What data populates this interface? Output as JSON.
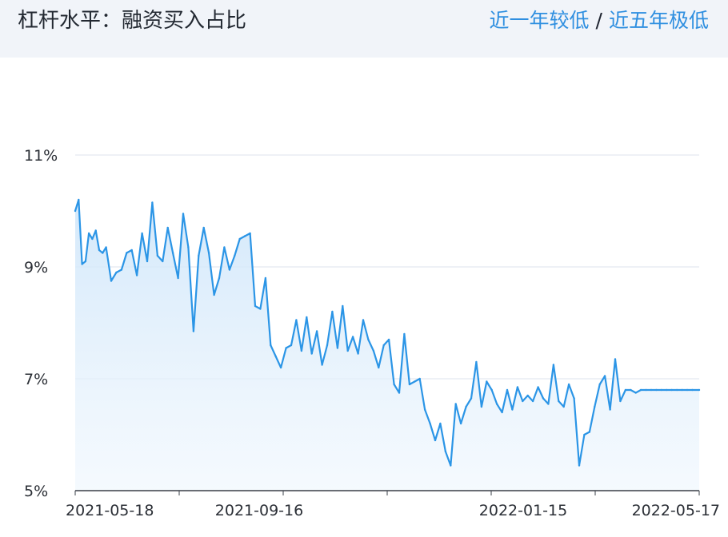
{
  "header": {
    "title": "杠杆水平：融资买入占比",
    "status_1y": "近一年较低",
    "separator": "/",
    "status_5y": "近五年极低"
  },
  "colors": {
    "line": "#2b95e6",
    "area_top": "#cfe6fa",
    "grid": "#dde3ec",
    "header_bg": "#f1f4f9",
    "accent": "#2f8fe0"
  },
  "chart_data": {
    "type": "area",
    "title": "",
    "xlabel": "",
    "ylabel": "",
    "ylim": [
      5,
      11
    ],
    "yticks": [
      5,
      7,
      9,
      11
    ],
    "ytick_labels": [
      "5%",
      "7%",
      "9%",
      "11%"
    ],
    "xtick_labels": [
      "2021-05-18",
      "2021-09-16",
      "2022-01-15",
      "2022-05-17"
    ],
    "grid": true,
    "legend": "none",
    "series": [
      {
        "x": [
          "2021-05-18",
          "2021-05-20",
          "2021-05-22",
          "2021-05-24",
          "2021-05-26",
          "2021-05-28",
          "2021-05-30",
          "2021-06-01",
          "2021-06-03",
          "2021-06-05",
          "2021-06-08",
          "2021-06-11",
          "2021-06-14",
          "2021-06-17",
          "2021-06-20",
          "2021-06-23",
          "2021-06-26",
          "2021-06-29",
          "2021-07-02",
          "2021-07-05",
          "2021-07-08",
          "2021-07-11",
          "2021-07-14",
          "2021-07-17",
          "2021-07-20",
          "2021-07-23",
          "2021-07-26",
          "2021-07-29",
          "2021-08-01",
          "2021-08-04",
          "2021-08-07",
          "2021-08-10",
          "2021-08-13",
          "2021-08-16",
          "2021-08-19",
          "2021-08-22",
          "2021-08-25",
          "2021-08-28",
          "2021-08-31",
          "2021-09-03",
          "2021-09-06",
          "2021-09-09",
          "2021-09-12",
          "2021-09-15",
          "2021-09-18",
          "2021-09-21",
          "2021-09-24",
          "2021-09-27",
          "2021-09-30",
          "2021-10-03",
          "2021-10-06",
          "2021-10-09",
          "2021-10-12",
          "2021-10-15",
          "2021-10-18",
          "2021-10-21",
          "2021-10-24",
          "2021-10-27",
          "2021-10-30",
          "2021-11-02",
          "2021-11-05",
          "2021-11-08",
          "2021-11-11",
          "2021-11-14",
          "2021-11-17",
          "2021-11-20",
          "2021-11-23",
          "2021-11-26",
          "2021-11-29",
          "2021-12-02",
          "2021-12-05",
          "2021-12-08",
          "2021-12-11",
          "2021-12-14",
          "2021-12-17",
          "2021-12-20",
          "2021-12-23",
          "2021-12-26",
          "2021-12-29",
          "2022-01-01",
          "2022-01-04",
          "2022-01-07",
          "2022-01-10",
          "2022-01-13",
          "2022-01-16",
          "2022-01-19",
          "2022-01-22",
          "2022-01-25",
          "2022-01-28",
          "2022-01-31",
          "2022-02-03",
          "2022-02-06",
          "2022-02-09",
          "2022-02-12",
          "2022-02-15",
          "2022-02-18",
          "2022-02-21",
          "2022-02-24",
          "2022-02-27",
          "2022-03-02",
          "2022-03-05",
          "2022-03-08",
          "2022-03-11",
          "2022-03-14",
          "2022-03-17",
          "2022-03-20",
          "2022-03-23",
          "2022-03-26",
          "2022-03-29",
          "2022-04-01",
          "2022-04-04",
          "2022-04-07",
          "2022-04-10",
          "2022-04-13",
          "2022-04-16",
          "2022-04-19",
          "2022-04-22",
          "2022-04-25",
          "2022-04-28",
          "2022-05-01",
          "2022-05-04",
          "2022-05-07",
          "2022-05-10",
          "2022-05-13",
          "2022-05-17"
        ],
        "values": [
          10.0,
          10.2,
          9.05,
          9.1,
          9.6,
          9.5,
          9.65,
          9.3,
          9.25,
          9.35,
          8.75,
          8.9,
          8.95,
          9.25,
          9.3,
          8.85,
          9.6,
          9.1,
          10.15,
          9.2,
          9.1,
          9.7,
          9.25,
          8.8,
          9.95,
          9.35,
          7.85,
          9.2,
          9.7,
          9.25,
          8.5,
          8.8,
          9.35,
          8.95,
          9.2,
          9.5,
          9.55,
          9.6,
          8.3,
          8.25,
          8.8,
          7.6,
          7.4,
          7.2,
          7.55,
          7.6,
          8.05,
          7.5,
          8.1,
          7.45,
          7.85,
          7.25,
          7.6,
          8.2,
          7.55,
          8.3,
          7.5,
          7.75,
          7.45,
          8.05,
          7.7,
          7.5,
          7.2,
          7.6,
          7.7,
          6.9,
          6.75,
          7.8,
          6.9,
          6.95,
          7.0,
          6.45,
          6.2,
          5.9,
          6.2,
          5.7,
          5.45,
          6.55,
          6.2,
          6.5,
          6.65,
          7.3,
          6.5,
          6.95,
          6.8,
          6.55,
          6.4,
          6.8,
          6.45,
          6.85,
          6.6,
          6.7,
          6.6,
          6.85,
          6.65,
          6.55,
          7.25,
          6.6,
          6.5,
          6.9,
          6.65,
          5.45,
          6.0,
          6.05,
          6.5,
          6.9,
          7.05,
          6.45,
          7.35,
          6.6,
          6.8,
          6.8,
          6.75,
          6.8,
          6.8,
          6.8,
          6.8,
          6.8,
          6.8,
          6.8,
          6.8,
          6.8,
          6.8,
          6.8,
          6.8
        ]
      }
    ]
  }
}
